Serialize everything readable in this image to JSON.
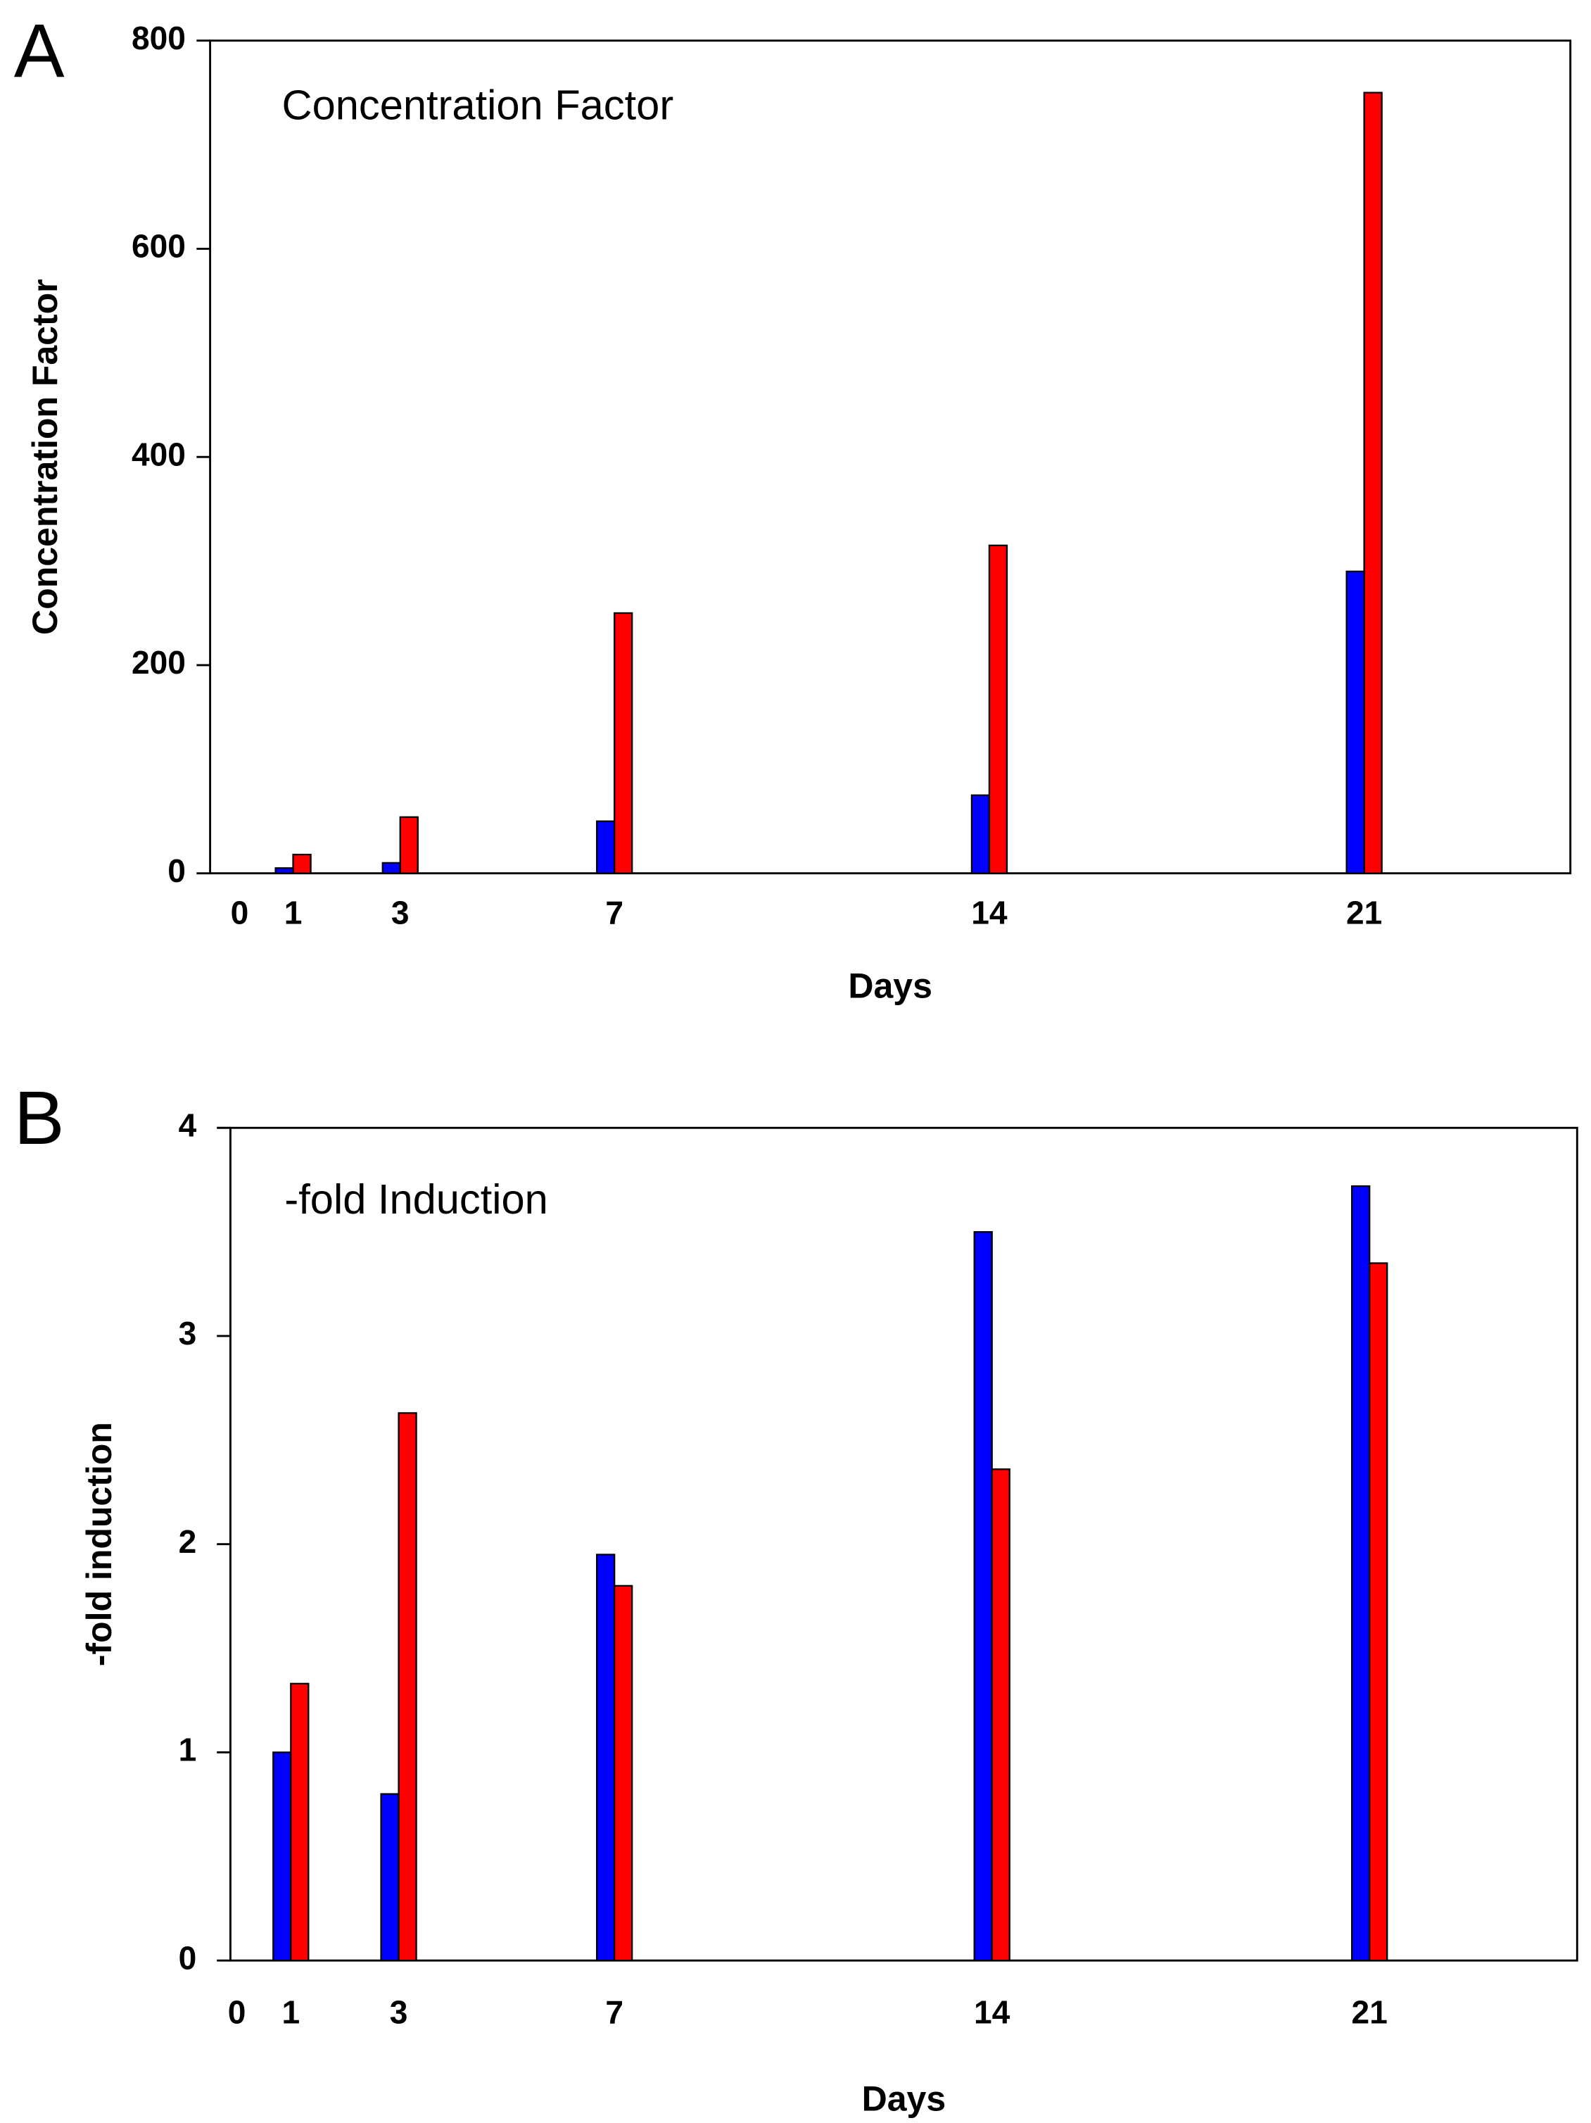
{
  "chart_data": [
    {
      "type": "bar",
      "panel": "A",
      "annotation": "Concentration Factor",
      "xlabel": "Days",
      "ylabel": "Concentration Factor",
      "x": [
        1,
        3,
        7,
        14,
        21
      ],
      "series": [
        {
          "color": "#0000ff",
          "values": [
            5,
            10,
            50,
            75,
            290
          ]
        },
        {
          "color": "#ff0000",
          "values": [
            18,
            54,
            250,
            315,
            750
          ]
        }
      ],
      "xlim": [
        -0.55,
        24.85
      ],
      "ylim": [
        0,
        800
      ],
      "xticks": [
        0,
        1,
        3,
        7,
        14,
        21
      ],
      "yticks": [
        0,
        200,
        400,
        600,
        800
      ]
    },
    {
      "type": "bar",
      "panel": "B",
      "annotation": "-fold Induction",
      "xlabel": "Days",
      "ylabel": "-fold induction",
      "x": [
        1,
        3,
        7,
        14,
        21
      ],
      "series": [
        {
          "color": "#0000ff",
          "values": [
            1.0,
            0.8,
            1.95,
            3.5,
            3.72
          ]
        },
        {
          "color": "#ff0000",
          "values": [
            1.33,
            2.63,
            1.8,
            2.36,
            3.35
          ]
        }
      ],
      "xlim": [
        -0.12,
        24.85
      ],
      "ylim": [
        0,
        4
      ],
      "xticks": [
        0,
        1,
        3,
        7,
        14,
        21
      ],
      "yticks": [
        0,
        1,
        2,
        3,
        4
      ]
    }
  ]
}
